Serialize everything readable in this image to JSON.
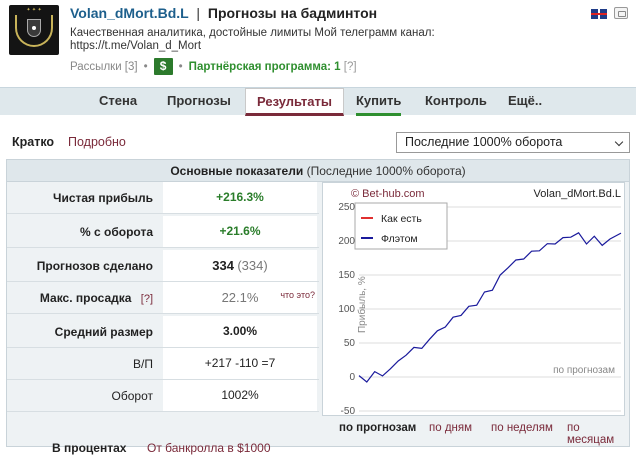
{
  "header": {
    "name": "Volan_dMort.Bd.L",
    "separator": "|",
    "subtitle": "Прогнозы на бадминтон",
    "description": "Качественная аналитика, достойные лимиты Мой телеграмм канал: https://t.me/Volan_d_Mort",
    "mailings": "Рассылки [3]",
    "bullet": "•",
    "dollar": "$",
    "partner_label": "Партнёрская программа:",
    "partner_value": "1",
    "partner_q": "[?]"
  },
  "nav": {
    "tabs": [
      "Стена",
      "Прогнозы",
      "Результаты",
      "Купить",
      "Контроль",
      "Ещё.."
    ]
  },
  "view": {
    "brief": "Кратко",
    "detailed": "Подробно",
    "period_select": "Последние 1000% оборота"
  },
  "panel": {
    "title": "Основные показатели",
    "title_note": "(Последние 1000% оборота)",
    "rows": [
      {
        "label": "Чистая прибыль",
        "value": "+216.3%"
      },
      {
        "label": "% с оборота",
        "value": "+21.6%"
      },
      {
        "label": "Прогнозов сделано",
        "value": "334",
        "extra": "(334)"
      },
      {
        "label": "Макс. просадка",
        "label_q": "[?]",
        "value": "22.1%",
        "note": "что это?"
      },
      {
        "label": "Средний размер",
        "value": "3.00%"
      },
      {
        "label": "В/П",
        "value": "+217 -110 =7"
      },
      {
        "label": "Оборот",
        "value": "1002%"
      }
    ],
    "footer_label": "В процентах",
    "footer_value": "От банкролла в $1000"
  },
  "chart": {
    "source": "© Bet-hub.com",
    "name": "Volan_dMort.Bd.L",
    "legend": [
      "Как есть",
      "Флэтом"
    ],
    "ylabel": "Прибыль, %",
    "xlabel": "по прогнозам",
    "yticks": [
      "250",
      "200",
      "150",
      "100",
      "50",
      "0",
      "-50"
    ],
    "tabs": [
      "по прогнозам",
      "по дням",
      "по неделям",
      "по месяцам"
    ],
    "colors": {
      "as_is": "#e03030",
      "flat": "#1a1a9c",
      "grid": "#dddddd"
    }
  },
  "chart_data": {
    "type": "line",
    "ylabel": "Прибыль, %",
    "xlabel": "по прогнозам",
    "ylim": [
      -50,
      250
    ],
    "x": [
      0,
      10,
      20,
      30,
      40,
      50,
      60,
      70,
      80,
      90,
      100,
      110,
      120,
      130,
      140,
      150,
      160,
      170,
      180,
      190,
      200,
      210,
      220,
      230,
      240,
      250,
      260,
      270,
      280,
      290,
      300,
      310,
      320,
      334
    ],
    "series": [
      {
        "name": "Флэтом",
        "values": [
          2,
          -3,
          8,
          6,
          12,
          28,
          32,
          48,
          42,
          60,
          68,
          78,
          88,
          95,
          104,
          110,
          125,
          132,
          150,
          165,
          172,
          178,
          185,
          190,
          196,
          200,
          205,
          210,
          212,
          200,
          207,
          198,
          203,
          216
        ]
      }
    ]
  }
}
